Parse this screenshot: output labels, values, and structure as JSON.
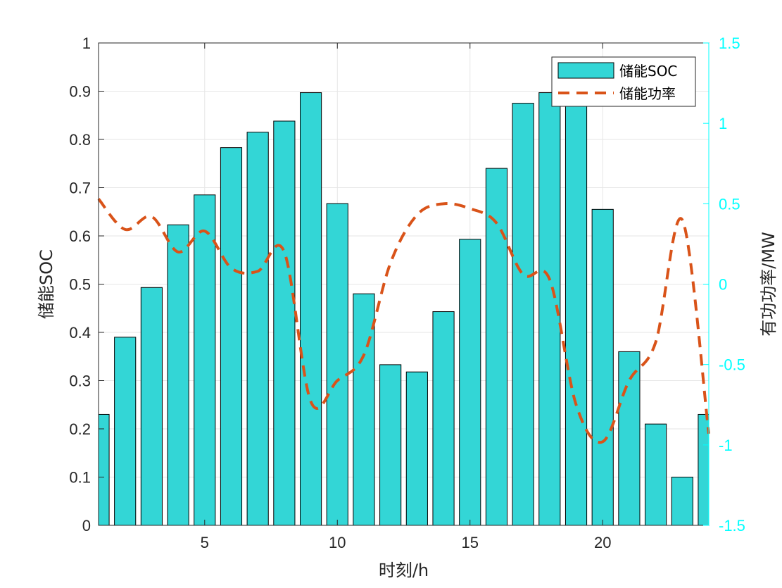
{
  "chart_data": {
    "type": "bar",
    "xlabel": "时刻/h",
    "ylabel_left": "储能SOC",
    "ylabel_right": "有功功率/MW",
    "xlim": [
      1,
      24
    ],
    "x_ticks": [
      5,
      10,
      15,
      20
    ],
    "ylim_left": [
      0,
      1
    ],
    "y_ticks_left": [
      "0",
      "0.1",
      "0.2",
      "0.3",
      "0.4",
      "0.5",
      "0.6",
      "0.7",
      "0.8",
      "0.9",
      "1"
    ],
    "ylim_right": [
      -1.5,
      1.5
    ],
    "y_ticks_right": [
      "-1.5",
      "-1",
      "-0.5",
      "0",
      "0.5",
      "1",
      "1.5"
    ],
    "grid": true,
    "legend_position": "top-right",
    "x": [
      1,
      2,
      3,
      4,
      5,
      6,
      7,
      8,
      9,
      10,
      11,
      12,
      13,
      14,
      15,
      16,
      17,
      18,
      19,
      20,
      21,
      22,
      23,
      24
    ],
    "series": [
      {
        "name": "储能SOC",
        "type": "bar",
        "axis": "left",
        "color": "#33D6D6",
        "values": [
          0.23,
          0.39,
          0.493,
          0.623,
          0.685,
          0.783,
          0.815,
          0.838,
          0.897,
          0.667,
          0.48,
          0.333,
          0.318,
          0.443,
          0.593,
          0.74,
          0.875,
          0.897,
          0.935,
          0.655,
          0.36,
          0.21,
          0.1,
          0.23
        ]
      },
      {
        "name": "储能功率",
        "type": "line",
        "style": "dashed",
        "axis": "right",
        "color": "#D95319",
        "values": [
          0.53,
          0.34,
          0.42,
          0.2,
          0.33,
          0.1,
          0.08,
          0.2,
          -0.73,
          -0.6,
          -0.44,
          0.13,
          0.43,
          0.5,
          0.47,
          0.38,
          0.06,
          0.03,
          -0.75,
          -0.98,
          -0.6,
          -0.36,
          0.4,
          -0.93
        ]
      }
    ]
  }
}
